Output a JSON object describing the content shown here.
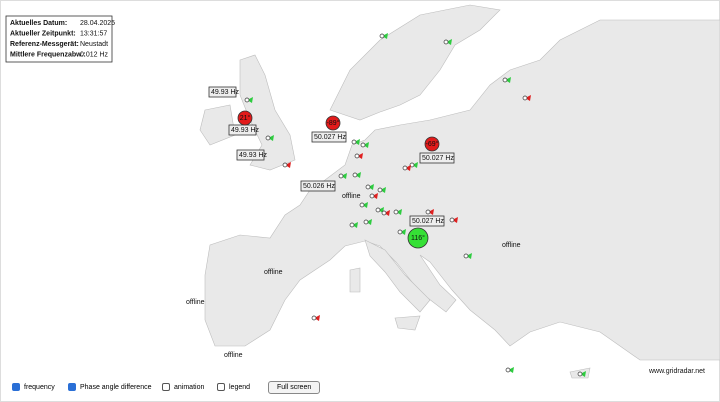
{
  "info": {
    "rows": [
      [
        "Aktuelles Datum:",
        "28.04.2025"
      ],
      [
        "Aktueller Zeitpunkt:",
        "13:31:57"
      ],
      [
        "Referenz-Messgerät:",
        "Neustadt"
      ],
      [
        "Mittlere Frequenzabw.:",
        "0.012 Hz"
      ]
    ]
  },
  "frequency_labels": [
    "49.93 Hz",
    "49.93 Hz",
    "49.93 Hz",
    "50.027 Hz",
    "50.027 Hz",
    "50.026 Hz",
    "50.027 Hz"
  ],
  "phase_circles": [
    "21°",
    "-89°",
    "-69°",
    "116°"
  ],
  "offline_labels": [
    "offline",
    "offline",
    "offline",
    "offline",
    "offline"
  ],
  "controls": {
    "checkboxes": [
      "frequency",
      "Phase angle difference",
      "animation",
      "legend"
    ],
    "button": "Full screen"
  },
  "footer": "www.gridradar.net"
}
